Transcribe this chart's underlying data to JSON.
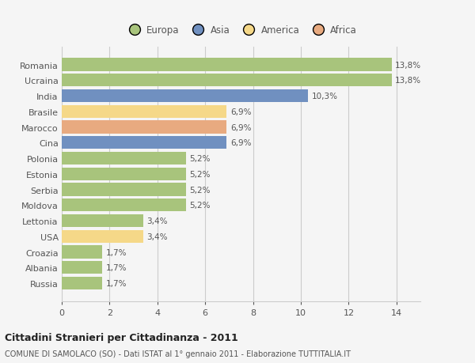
{
  "categories": [
    "Romania",
    "Ucraina",
    "India",
    "Brasile",
    "Marocco",
    "Cina",
    "Polonia",
    "Estonia",
    "Serbia",
    "Moldova",
    "Lettonia",
    "USA",
    "Croazia",
    "Albania",
    "Russia"
  ],
  "values": [
    13.8,
    13.8,
    10.3,
    6.9,
    6.9,
    6.9,
    5.2,
    5.2,
    5.2,
    5.2,
    3.4,
    3.4,
    1.7,
    1.7,
    1.7
  ],
  "labels": [
    "13,8%",
    "13,8%",
    "10,3%",
    "6,9%",
    "6,9%",
    "6,9%",
    "5,2%",
    "5,2%",
    "5,2%",
    "5,2%",
    "3,4%",
    "3,4%",
    "1,7%",
    "1,7%",
    "1,7%"
  ],
  "colors": [
    "#a8c47c",
    "#a8c47c",
    "#7090c0",
    "#f5d888",
    "#e8aa80",
    "#7090c0",
    "#a8c47c",
    "#a8c47c",
    "#a8c47c",
    "#a8c47c",
    "#a8c47c",
    "#f5d888",
    "#a8c47c",
    "#a8c47c",
    "#a8c47c"
  ],
  "legend": {
    "Europa": "#a8c47c",
    "Asia": "#7090c0",
    "America": "#f5d888",
    "Africa": "#e8aa80"
  },
  "xlim": [
    0,
    15
  ],
  "xticks": [
    0,
    2,
    4,
    6,
    8,
    10,
    12,
    14
  ],
  "title": "Cittadini Stranieri per Cittadinanza - 2011",
  "subtitle": "COMUNE DI SAMOLACO (SO) - Dati ISTAT al 1° gennaio 2011 - Elaborazione TUTTITALIA.IT",
  "bg_color": "#f5f5f5",
  "grid_color": "#cccccc",
  "text_color": "#555555"
}
